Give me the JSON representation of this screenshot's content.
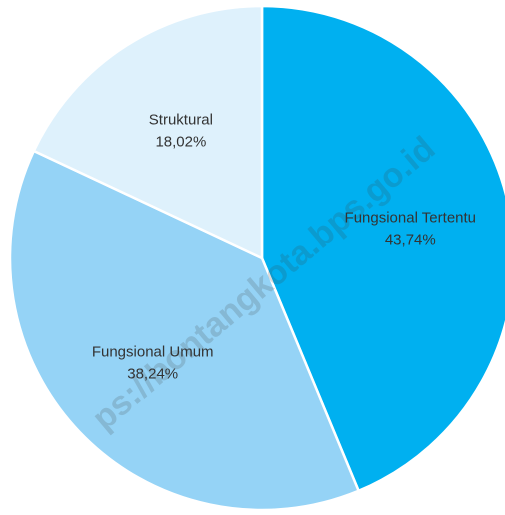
{
  "chart_data": {
    "type": "pie",
    "categories": [
      "Fungsional Tertentu",
      "Fungsional Umum",
      "Struktural"
    ],
    "values": [
      43.74,
      38.24,
      18.02
    ],
    "value_labels": [
      "43,74%",
      "38,24%",
      "18,02%"
    ],
    "colors": [
      "#00b0f0",
      "#95d3f6",
      "#def1fc"
    ],
    "watermark": "ps://bontangkota.bps.go.id"
  }
}
